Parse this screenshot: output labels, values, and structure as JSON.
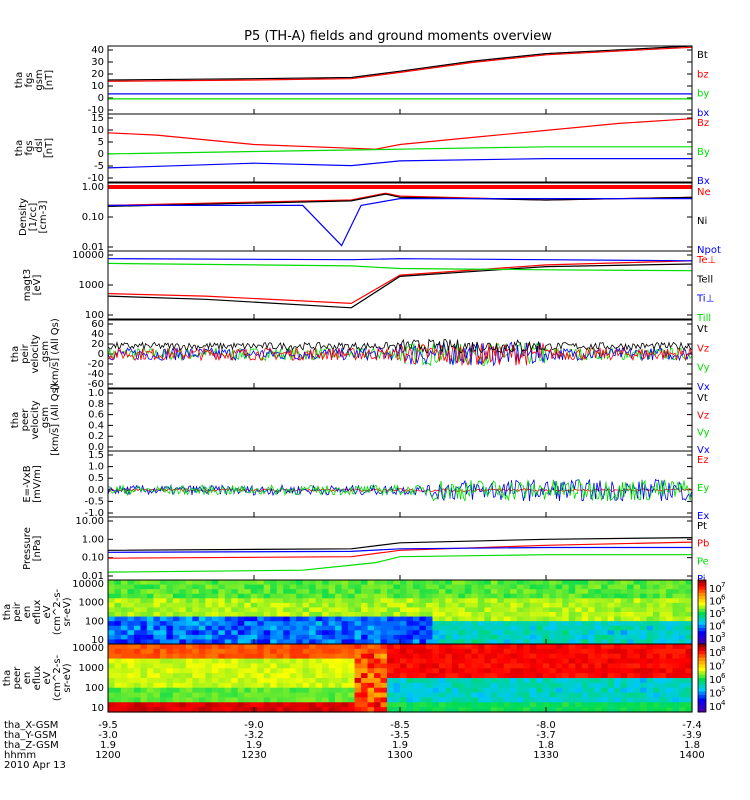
{
  "title": "P5 (TH-A) fields and ground moments overview",
  "colors": {
    "black": "#000000",
    "red": "#ff0000",
    "green": "#00dd00",
    "blue": "#0000ff"
  },
  "panels": [
    {
      "id": "p1",
      "ylabel": [
        "tha",
        "fgs",
        "gsm",
        "[nT]"
      ],
      "ticks": [
        "40",
        "30",
        "20",
        "10",
        "0",
        "-10"
      ],
      "legend": [
        {
          "t": "Bt",
          "c": "black"
        },
        {
          "t": "bz",
          "c": "red"
        },
        {
          "t": "by",
          "c": "green"
        },
        {
          "t": "bx",
          "c": "blue"
        }
      ]
    },
    {
      "id": "p2",
      "ylabel": [
        "tha",
        "fgs",
        "_dsl",
        "[nT]"
      ],
      "ticks": [
        "15",
        "10",
        "5",
        "0",
        "-5",
        "-10"
      ],
      "legend": [
        {
          "t": "Bz",
          "c": "red"
        },
        {
          "t": "By",
          "c": "green"
        },
        {
          "t": "Bx",
          "c": "blue"
        }
      ]
    },
    {
      "id": "p3",
      "ylabel": [
        "Density",
        "[1/cc]",
        "[cm-3]"
      ],
      "ticks": [
        "1.00",
        "0.10",
        "0.01"
      ],
      "legend": [
        {
          "t": "Ne",
          "c": "red"
        },
        {
          "t": "Ni",
          "c": "black"
        },
        {
          "t": "Npot",
          "c": "blue"
        }
      ]
    },
    {
      "id": "p4",
      "ylabel": [
        "magt3",
        "[eV]"
      ],
      "ticks": [
        "10000",
        "1000",
        "100"
      ],
      "legend": [
        {
          "t": "Te⊥",
          "c": "red"
        },
        {
          "t": "Tell",
          "c": "black"
        },
        {
          "t": "Ti⊥",
          "c": "blue"
        },
        {
          "t": "Till",
          "c": "green"
        }
      ]
    },
    {
      "id": "p5",
      "ylabel": [
        "tha",
        "peir",
        "velocity",
        "_gsm",
        "[km/s] (All Qs)"
      ],
      "ticks": [
        "60",
        "40",
        "20",
        "0",
        "-20",
        "-40",
        "-60"
      ],
      "legend": [
        {
          "t": "Vt",
          "c": "black"
        },
        {
          "t": "Vz",
          "c": "red"
        },
        {
          "t": "Vy",
          "c": "green"
        },
        {
          "t": "Vx",
          "c": "blue"
        }
      ]
    },
    {
      "id": "p6",
      "ylabel": [
        "tha",
        "peer",
        "velocity",
        "_gsm",
        "[km/s] (All Qs)"
      ],
      "ticks": [
        "1.0",
        "0.8",
        "0.6",
        "0.4",
        "0.2",
        "0.0"
      ],
      "legend": [
        {
          "t": "Vt",
          "c": "black"
        },
        {
          "t": "Vz",
          "c": "red"
        },
        {
          "t": "Vy",
          "c": "green"
        },
        {
          "t": "Vx",
          "c": "blue"
        }
      ]
    },
    {
      "id": "p7",
      "ylabel": [
        "E=-VxB",
        "[mV/m]"
      ],
      "ticks": [
        "1.5",
        "1.0",
        "0.5",
        "0.0",
        "-0.5",
        "-1.0"
      ],
      "legend": [
        {
          "t": "Ez",
          "c": "red"
        },
        {
          "t": "Ey",
          "c": "green"
        },
        {
          "t": "Ex",
          "c": "blue"
        }
      ]
    },
    {
      "id": "p8",
      "ylabel": [
        "Pressure",
        "[nPa]"
      ],
      "ticks": [
        "10.00",
        "1.00",
        "0.10",
        "0.01"
      ],
      "legend": [
        {
          "t": "Pt",
          "c": "black"
        },
        {
          "t": "Pb",
          "c": "red"
        },
        {
          "t": "Pe",
          "c": "green"
        },
        {
          "t": "Pi",
          "c": "blue"
        }
      ]
    },
    {
      "id": "p9",
      "ylabel": [
        "tha",
        "peir",
        "en",
        "eflux",
        "eV",
        "(cm^2-s-",
        "sr-eV)"
      ],
      "ticks": [
        "10000",
        "1000",
        "100",
        "10"
      ],
      "colorbar": [
        "7",
        "6",
        "5",
        "4",
        "3"
      ]
    },
    {
      "id": "p10",
      "ylabel": [
        "tha",
        "peer",
        "en",
        "eflux",
        "eV",
        "(cm^2-s-",
        "sr-eV)"
      ],
      "ticks": [
        "10000",
        "1000",
        "100",
        "10"
      ],
      "colorbar": [
        "8",
        "7",
        "6",
        "5",
        "4"
      ]
    }
  ],
  "footer": {
    "rows": [
      {
        "label": "tha_X-GSM",
        "values": [
          "-9.5",
          "-9.0",
          "-8.5",
          "-8.0",
          "-7.4"
        ]
      },
      {
        "label": "tha_Y-GSM",
        "values": [
          "-3.0",
          "-3.2",
          "-3.5",
          "-3.7",
          "-3.9"
        ]
      },
      {
        "label": "tha_Z-GSM",
        "values": [
          "1.9",
          "1.9",
          "1.9",
          "1.8",
          "1.8"
        ]
      },
      {
        "label": "hhmm",
        "values": [
          "1200",
          "1230",
          "1300",
          "1330",
          "1400"
        ]
      }
    ],
    "date": "2010 Apr 13",
    "colorbar_base": "10"
  },
  "chart_data": {
    "type": "line",
    "title": "P5 (TH-A) fields and ground moments overview",
    "x_unit": "hhmm",
    "x_range": [
      "1200",
      "1400"
    ],
    "x_ticks": [
      "1200",
      "1230",
      "1300",
      "1330",
      "1400"
    ],
    "series": [
      {
        "panel": "p1",
        "name": "Bt",
        "t": [
          1200,
          1230,
          1250,
          1300,
          1315,
          1330,
          1345,
          1400
        ],
        "values": [
          15,
          16,
          17,
          22,
          30,
          36,
          39,
          42
        ]
      },
      {
        "panel": "p1",
        "name": "bz",
        "t": [
          1200,
          1230,
          1250,
          1300,
          1315,
          1330,
          1345,
          1400
        ],
        "values": [
          14,
          15,
          16,
          21,
          29,
          35,
          38,
          41
        ]
      },
      {
        "panel": "p1",
        "name": "by",
        "t": [
          1200,
          1300,
          1400
        ],
        "values": [
          0,
          0,
          0
        ]
      },
      {
        "panel": "p1",
        "name": "bx",
        "t": [
          1200,
          1300,
          1400
        ],
        "values": [
          4,
          4,
          4
        ]
      },
      {
        "panel": "p2",
        "name": "Bz",
        "t": [
          1200,
          1210,
          1230,
          1255,
          1300,
          1315,
          1330,
          1345,
          1400
        ],
        "values": [
          9,
          8,
          4,
          2,
          4,
          7,
          10,
          13,
          15
        ]
      },
      {
        "panel": "p2",
        "name": "By",
        "t": [
          1200,
          1230,
          1300,
          1330,
          1400
        ],
        "values": [
          0,
          1,
          2,
          3,
          3
        ]
      },
      {
        "panel": "p2",
        "name": "Bx",
        "t": [
          1200,
          1230,
          1250,
          1300,
          1330,
          1400
        ],
        "values": [
          -6,
          -4,
          -5,
          -3,
          -2,
          -2
        ]
      },
      {
        "panel": "p3",
        "name": "Ne",
        "t": [
          1200,
          1250,
          1257,
          1300,
          1330,
          1400
        ],
        "values": [
          0.3,
          0.45,
          0.75,
          0.6,
          0.45,
          0.55
        ]
      },
      {
        "panel": "p3",
        "name": "Ni",
        "t": [
          1200,
          1250,
          1257,
          1300,
          1330,
          1400
        ],
        "values": [
          0.28,
          0.42,
          0.7,
          0.55,
          0.45,
          0.55
        ]
      },
      {
        "panel": "p3",
        "name": "Npot",
        "t": [
          1200,
          1240,
          1248,
          1252,
          1260,
          1300,
          1400
        ],
        "values": [
          0.3,
          0.3,
          0.015,
          0.3,
          0.5,
          0.5,
          0.5
        ]
      },
      {
        "panel": "p4",
        "name": "Te⊥",
        "t": [
          1200,
          1220,
          1250,
          1300,
          1330,
          1400
        ],
        "values": [
          600,
          500,
          300,
          2200,
          4500,
          6000
        ]
      },
      {
        "panel": "p4",
        "name": "Tell",
        "t": [
          1200,
          1220,
          1250,
          1300,
          1330,
          1400
        ],
        "values": [
          500,
          400,
          220,
          2000,
          4000,
          4800
        ]
      },
      {
        "panel": "p4",
        "name": "Ti⊥",
        "t": [
          1200,
          1250,
          1300,
          1330,
          1400
        ],
        "values": [
          7000,
          6500,
          7000,
          6500,
          6000
        ]
      },
      {
        "panel": "p4",
        "name": "Till",
        "t": [
          1200,
          1250,
          1300,
          1330,
          1400
        ],
        "values": [
          5000,
          4200,
          3500,
          3200,
          3000
        ]
      },
      {
        "panel": "p5",
        "name": "Vx",
        "t": [
          1200,
          1400
        ],
        "values": [
          0,
          0
        ]
      },
      {
        "panel": "p5",
        "name": "Vt",
        "t": [
          1200,
          1400
        ],
        "values": [
          15,
          15
        ]
      },
      {
        "panel": "p7",
        "name": "Ex",
        "t": [
          1200,
          1400
        ],
        "values": [
          0.0,
          0.0
        ]
      },
      {
        "panel": "p8",
        "name": "Pt",
        "t": [
          1200,
          1250,
          1300,
          1330,
          1400
        ],
        "values": [
          0.25,
          0.3,
          0.6,
          0.9,
          1.1
        ]
      },
      {
        "panel": "p8",
        "name": "Pb",
        "t": [
          1200,
          1250,
          1300,
          1330,
          1400
        ],
        "values": [
          0.1,
          0.12,
          0.25,
          0.45,
          0.65
        ]
      },
      {
        "panel": "p8",
        "name": "Pe",
        "t": [
          1200,
          1240,
          1255,
          1300,
          1330,
          1400
        ],
        "values": [
          0.02,
          0.025,
          0.06,
          0.12,
          0.15,
          0.15
        ]
      },
      {
        "panel": "p8",
        "name": "Pi",
        "t": [
          1200,
          1250,
          1300,
          1330,
          1400
        ],
        "values": [
          0.2,
          0.22,
          0.3,
          0.35,
          0.35
        ]
      }
    ]
  }
}
